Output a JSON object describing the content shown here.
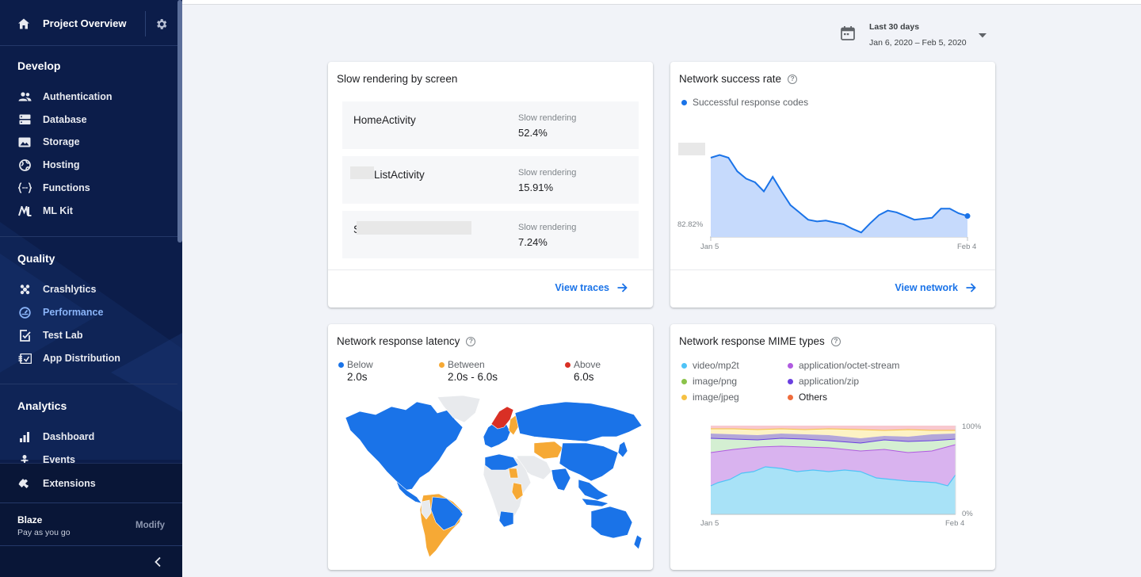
{
  "sidebar": {
    "title": "Project Overview",
    "sections": {
      "develop": "Develop",
      "quality": "Quality",
      "analytics": "Analytics"
    },
    "develop_items": [
      {
        "label": "Authentication",
        "icon": "people-icon"
      },
      {
        "label": "Database",
        "icon": "database-icon"
      },
      {
        "label": "Storage",
        "icon": "storage-icon"
      },
      {
        "label": "Hosting",
        "icon": "globe-icon"
      },
      {
        "label": "Functions",
        "icon": "functions-icon"
      },
      {
        "label": "ML Kit",
        "icon": "ml-kit-icon"
      }
    ],
    "quality_items": [
      {
        "label": "Crashlytics",
        "icon": "crashlytics-icon"
      },
      {
        "label": "Performance",
        "icon": "performance-icon",
        "active": true
      },
      {
        "label": "Test Lab",
        "icon": "test-lab-icon"
      },
      {
        "label": "App Distribution",
        "icon": "app-distribution-icon"
      }
    ],
    "analytics_items": [
      {
        "label": "Dashboard",
        "icon": "bar-chart-icon"
      },
      {
        "label": "Events",
        "icon": "events-icon"
      }
    ],
    "extensions": "Extensions",
    "plan": {
      "name": "Blaze",
      "sub": "Pay as you go",
      "modify": "Modify"
    }
  },
  "date_range": {
    "label": "Last 30 days",
    "range": "Jan 6, 2020 – Feb 5, 2020"
  },
  "slow_rendering": {
    "title": "Slow rendering by screen",
    "rows": [
      {
        "name": "HomeActivity",
        "metric_label": "Slow rendering",
        "value": "52.4%"
      },
      {
        "name": "ListActivity",
        "metric_label": "Slow rendering",
        "value": "15.91%"
      },
      {
        "name": "S",
        "metric_label": "Slow rendering",
        "value": "7.24%"
      }
    ],
    "link": "View traces"
  },
  "network_success": {
    "title": "Network success rate",
    "legend": "Successful response codes",
    "y_min_label": "82.82%",
    "x_start": "Jan 5",
    "x_end": "Feb 4",
    "link": "View network",
    "chart_data": {
      "type": "area",
      "x": [
        "Jan 5",
        "Feb 4"
      ],
      "ymin": 82.82,
      "series_relative": [
        0.87,
        0.9,
        0.87,
        0.72,
        0.64,
        0.6,
        0.5,
        0.66,
        0.5,
        0.35,
        0.27,
        0.19,
        0.17,
        0.18,
        0.16,
        0.14,
        0.09,
        0.05,
        0.15,
        0.24,
        0.29,
        0.27,
        0.23,
        0.19,
        0.2,
        0.21,
        0.31,
        0.31,
        0.26,
        0.23
      ]
    }
  },
  "latency": {
    "title": "Network response latency",
    "legend": [
      {
        "label": "Below",
        "value": "2.0s",
        "color": "#1a73e8"
      },
      {
        "label": "Between",
        "value": "2.0s - 6.0s",
        "color": "#f6a935"
      },
      {
        "label": "Above",
        "value": "6.0s",
        "color": "#d93025"
      }
    ]
  },
  "mime": {
    "title": "Network response MIME types",
    "legend": [
      {
        "label": "video/mp2t",
        "color": "#4fc3f7"
      },
      {
        "label": "image/png",
        "color": "#8bc34a"
      },
      {
        "label": "image/jpeg",
        "color": "#f6c143"
      },
      {
        "label": "application/octet-stream",
        "color": "#b05be0"
      },
      {
        "label": "application/zip",
        "color": "#6a3fe0"
      },
      {
        "label": "Others",
        "color": "#ef6c3c"
      }
    ],
    "y_top": "100%",
    "y_bottom": "0%",
    "x_start": "Jan 5",
    "x_end": "Feb 4"
  }
}
